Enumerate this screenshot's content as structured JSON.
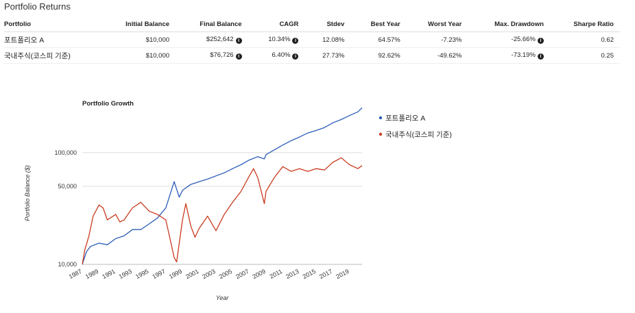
{
  "page_title": "Portfolio Returns",
  "table": {
    "headers": [
      "Portfolio",
      "Initial Balance",
      "Final Balance",
      "CAGR",
      "Stdev",
      "Best Year",
      "Worst Year",
      "Max. Drawdown",
      "Sharpe Ratio"
    ],
    "rows": [
      {
        "name": "포트폴리오 A",
        "initial": "$10,000",
        "final": "$252,642",
        "cagr": "10.34%",
        "stdev": "12.08%",
        "best": "64.57%",
        "worst": "-7.23%",
        "drawdown": "-25.66%",
        "sharpe": "0.62"
      },
      {
        "name": "국내주식(코스피 기준)",
        "initial": "$10,000",
        "final": "$76,726",
        "cagr": "6.40%",
        "stdev": "27.73%",
        "best": "92.62%",
        "worst": "-49.62%",
        "drawdown": "-73.19%",
        "sharpe": "0.25"
      }
    ],
    "info_icon": "info-circle-icon"
  },
  "chart_data": {
    "type": "line",
    "title": "Portfolio Growth",
    "xlabel": "Year",
    "ylabel": "Portfolio Balance ($)",
    "y_scale": "log",
    "ylim": [
      10000,
      250000
    ],
    "xlim": [
      1987,
      2020.5
    ],
    "y_ticks": [
      {
        "value": 10000,
        "label": "10,000"
      },
      {
        "value": 50000,
        "label": "50,000"
      },
      {
        "value": 100000,
        "label": "100,000"
      }
    ],
    "x_ticks": [
      1987,
      1989,
      1991,
      1993,
      1995,
      1997,
      1999,
      2001,
      2003,
      2005,
      2007,
      2009,
      2011,
      2013,
      2015,
      2017,
      2019
    ],
    "legend_position": "right",
    "series": [
      {
        "name": "포트폴리오 A",
        "color": "#2a5cb8",
        "points": [
          [
            1987,
            10000
          ],
          [
            1987.5,
            13000
          ],
          [
            1988,
            14500
          ],
          [
            1989,
            15500
          ],
          [
            1990,
            15000
          ],
          [
            1991,
            17000
          ],
          [
            1992,
            18000
          ],
          [
            1993,
            20500
          ],
          [
            1994,
            20500
          ],
          [
            1995,
            23000
          ],
          [
            1996,
            26000
          ],
          [
            1997,
            32000
          ],
          [
            1997.5,
            42000
          ],
          [
            1998,
            55000
          ],
          [
            1998.6,
            40000
          ],
          [
            1999,
            46000
          ],
          [
            2000,
            52000
          ],
          [
            2001,
            55000
          ],
          [
            2002,
            58000
          ],
          [
            2003,
            62000
          ],
          [
            2004,
            66000
          ],
          [
            2005,
            72000
          ],
          [
            2006,
            78000
          ],
          [
            2007,
            86000
          ],
          [
            2008,
            92000
          ],
          [
            2008.8,
            88000
          ],
          [
            2009,
            96000
          ],
          [
            2010,
            106000
          ],
          [
            2011,
            117000
          ],
          [
            2012,
            128000
          ],
          [
            2013,
            138000
          ],
          [
            2014,
            150000
          ],
          [
            2015,
            158000
          ],
          [
            2016,
            168000
          ],
          [
            2017,
            185000
          ],
          [
            2018,
            198000
          ],
          [
            2019,
            215000
          ],
          [
            2020,
            232000
          ],
          [
            2020.5,
            252642
          ]
        ]
      },
      {
        "name": "국내주식(코스피 기준)",
        "color": "#c83a1e",
        "points": [
          [
            1987,
            10000
          ],
          [
            1987.3,
            13500
          ],
          [
            1987.8,
            18000
          ],
          [
            1988.3,
            27000
          ],
          [
            1989,
            34000
          ],
          [
            1989.5,
            32000
          ],
          [
            1990,
            25000
          ],
          [
            1991,
            28000
          ],
          [
            1991.5,
            24000
          ],
          [
            1992,
            25000
          ],
          [
            1993,
            32000
          ],
          [
            1994,
            36000
          ],
          [
            1995,
            30000
          ],
          [
            1996,
            28000
          ],
          [
            1997,
            25000
          ],
          [
            1997.5,
            17000
          ],
          [
            1998,
            11500
          ],
          [
            1998.3,
            10500
          ],
          [
            1999,
            25000
          ],
          [
            1999.4,
            35000
          ],
          [
            2000,
            22000
          ],
          [
            2000.5,
            17500
          ],
          [
            2001,
            21000
          ],
          [
            2002,
            27000
          ],
          [
            2003,
            20000
          ],
          [
            2004,
            28000
          ],
          [
            2005,
            36000
          ],
          [
            2006,
            45000
          ],
          [
            2007,
            62000
          ],
          [
            2007.5,
            72000
          ],
          [
            2008,
            60000
          ],
          [
            2008.8,
            35000
          ],
          [
            2009,
            45000
          ],
          [
            2010,
            60000
          ],
          [
            2011,
            75000
          ],
          [
            2012,
            68000
          ],
          [
            2013,
            72000
          ],
          [
            2014,
            68000
          ],
          [
            2015,
            72000
          ],
          [
            2016,
            70000
          ],
          [
            2017,
            82000
          ],
          [
            2018,
            90000
          ],
          [
            2019,
            78000
          ],
          [
            2020,
            72000
          ],
          [
            2020.5,
            76726
          ]
        ]
      }
    ]
  }
}
